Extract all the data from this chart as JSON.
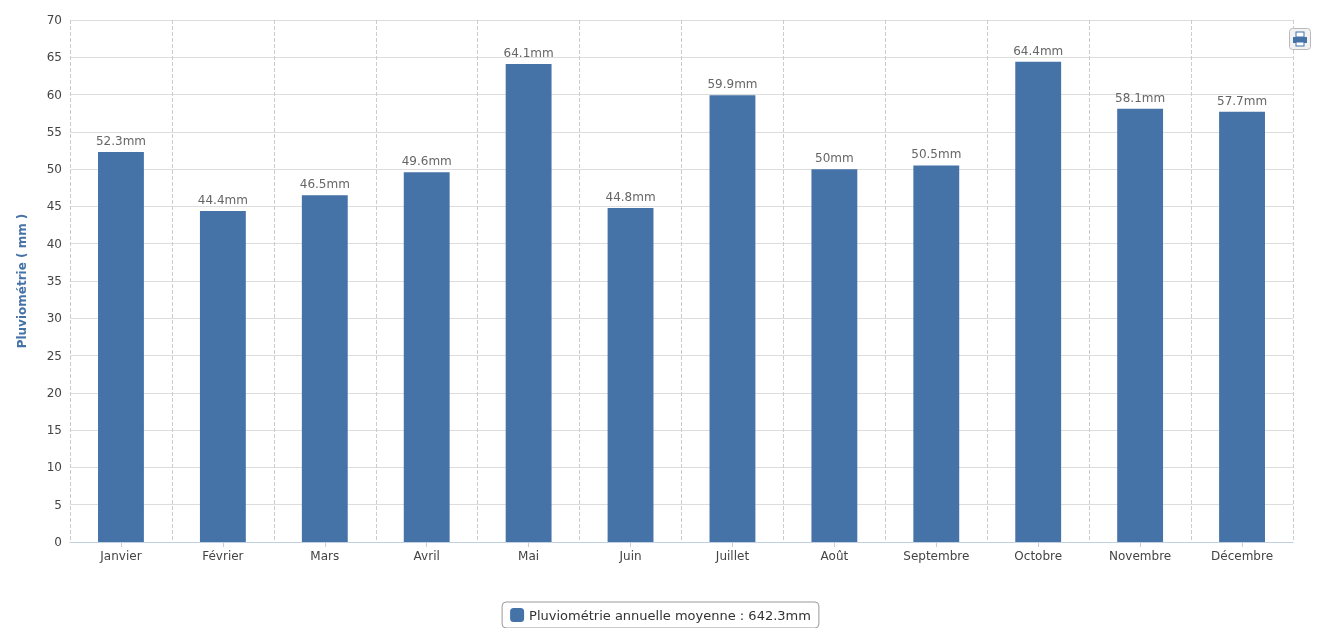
{
  "chart_data": {
    "type": "bar",
    "ylabel": "Pluviométrie ( mm )",
    "categories": [
      "Janvier",
      "Février",
      "Mars",
      "Avril",
      "Mai",
      "Juin",
      "Juillet",
      "Août",
      "Septembre",
      "Octobre",
      "Novembre",
      "Décembre"
    ],
    "series": [
      {
        "name": "Pluviométrie annuelle moyenne : 642.3mm",
        "color": "#4572a7",
        "values": [
          52.3,
          44.4,
          46.5,
          49.6,
          64.1,
          44.8,
          59.9,
          50,
          50.5,
          64.4,
          58.1,
          57.7
        ],
        "value_labels": [
          "52.3mm",
          "44.4mm",
          "46.5mm",
          "49.6mm",
          "64.1mm",
          "44.8mm",
          "59.9mm",
          "50mm",
          "50.5mm",
          "64.4mm",
          "58.1mm",
          "57.7mm"
        ]
      }
    ],
    "ylim": [
      0,
      70
    ],
    "yticks": [
      0,
      5,
      10,
      15,
      20,
      25,
      30,
      35,
      40,
      45,
      50,
      55,
      60,
      65,
      70
    ],
    "grid": true,
    "legend": "bottom"
  }
}
